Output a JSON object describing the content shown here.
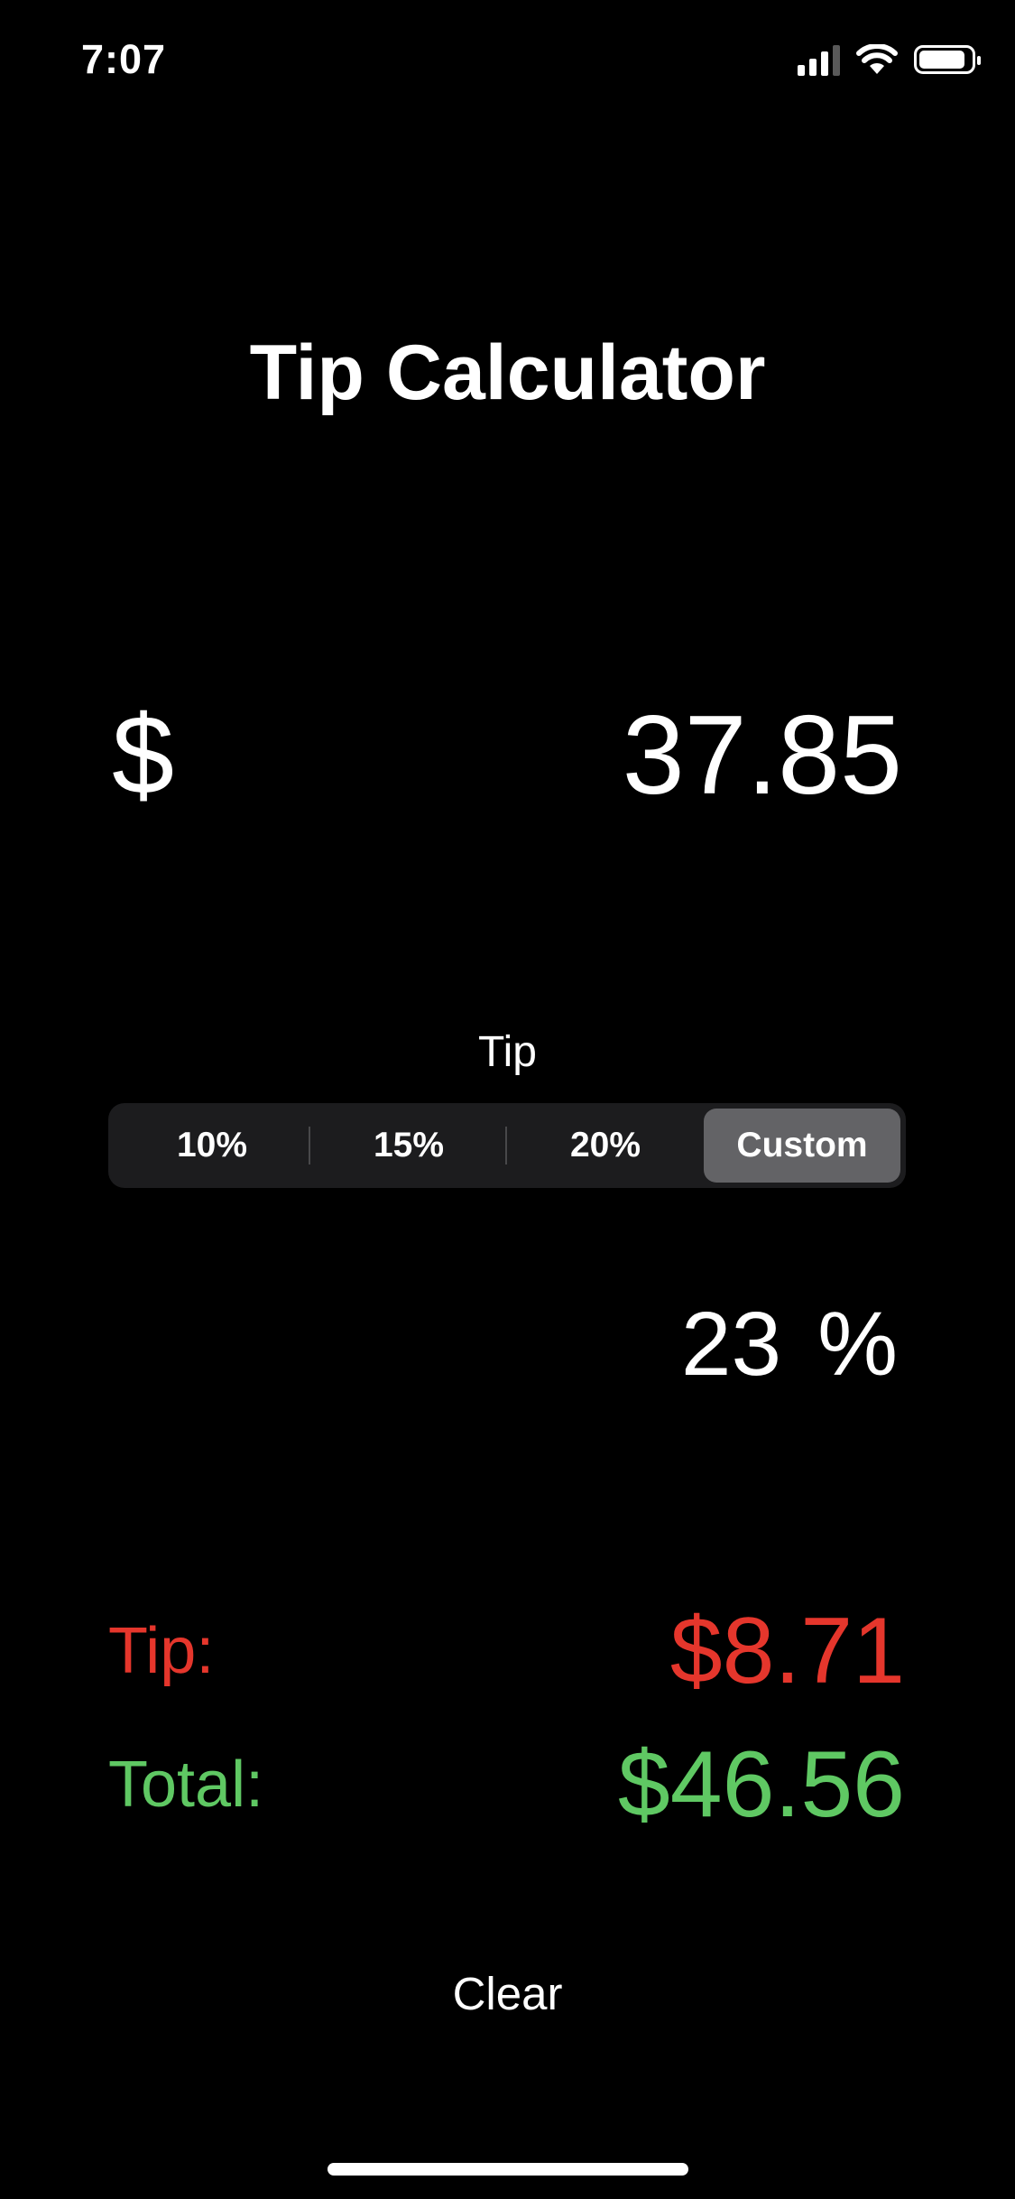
{
  "status_bar": {
    "time": "7:07",
    "battery_level": 0.9
  },
  "app": {
    "title": "Tip Calculator"
  },
  "bill": {
    "currency_symbol": "$",
    "amount": "37.85"
  },
  "tip_selector": {
    "label": "Tip",
    "options": [
      "10%",
      "15%",
      "20%",
      "Custom"
    ],
    "selected": "Custom"
  },
  "custom_tip": {
    "value": "23",
    "unit": "%"
  },
  "results": {
    "tip_label": "Tip:",
    "tip_value": "$8.71",
    "total_label": "Total:",
    "total_value": "$46.56"
  },
  "actions": {
    "clear_label": "Clear"
  },
  "colors": {
    "background": "#000000",
    "text": "#ffffff",
    "tip_red": "#e5362c",
    "total_green": "#5fc863",
    "segment_background": "#1c1c1e",
    "segment_selected": "#636366"
  }
}
